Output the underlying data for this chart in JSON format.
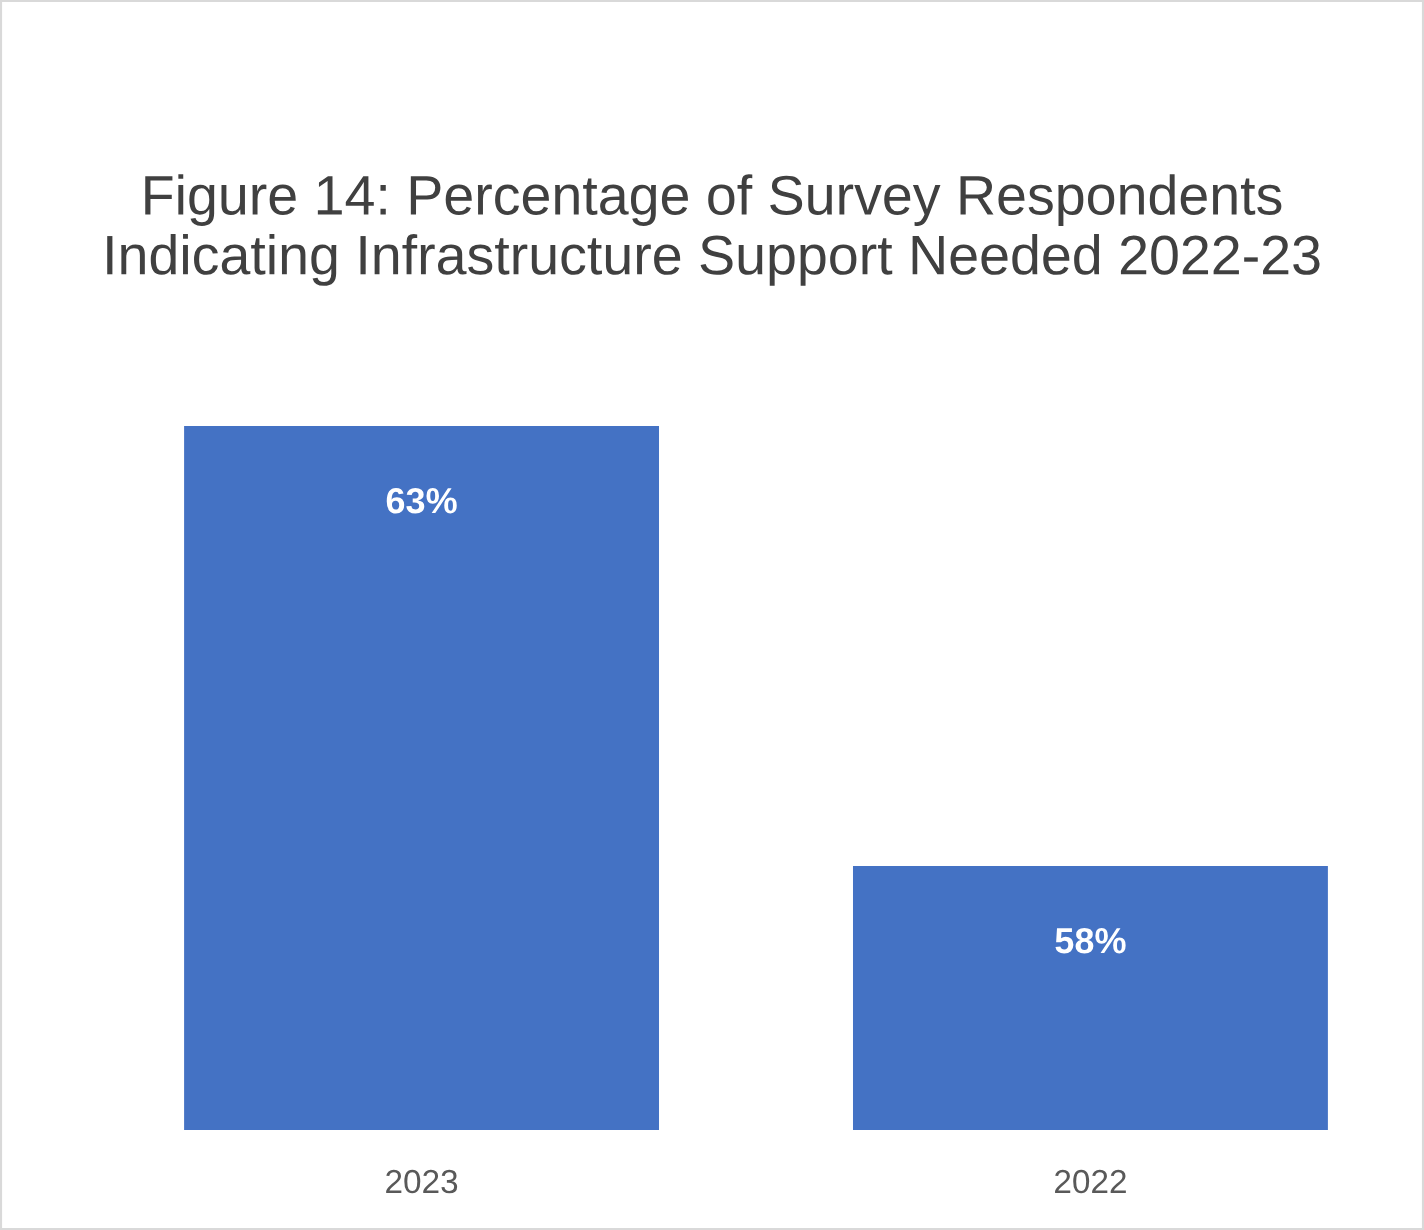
{
  "chart_data": {
    "type": "bar",
    "title": "Figure 14: Percentage of Survey Respondents Indicating Infrastructure Support Needed 2022-23",
    "categories": [
      "2023",
      "2022"
    ],
    "values": [
      63,
      58
    ],
    "value_labels": [
      "63%",
      "58%"
    ],
    "color": "#4472c4",
    "ylim": [
      55,
      63
    ],
    "tick_labels": "x",
    "grid": false,
    "legend": false
  }
}
